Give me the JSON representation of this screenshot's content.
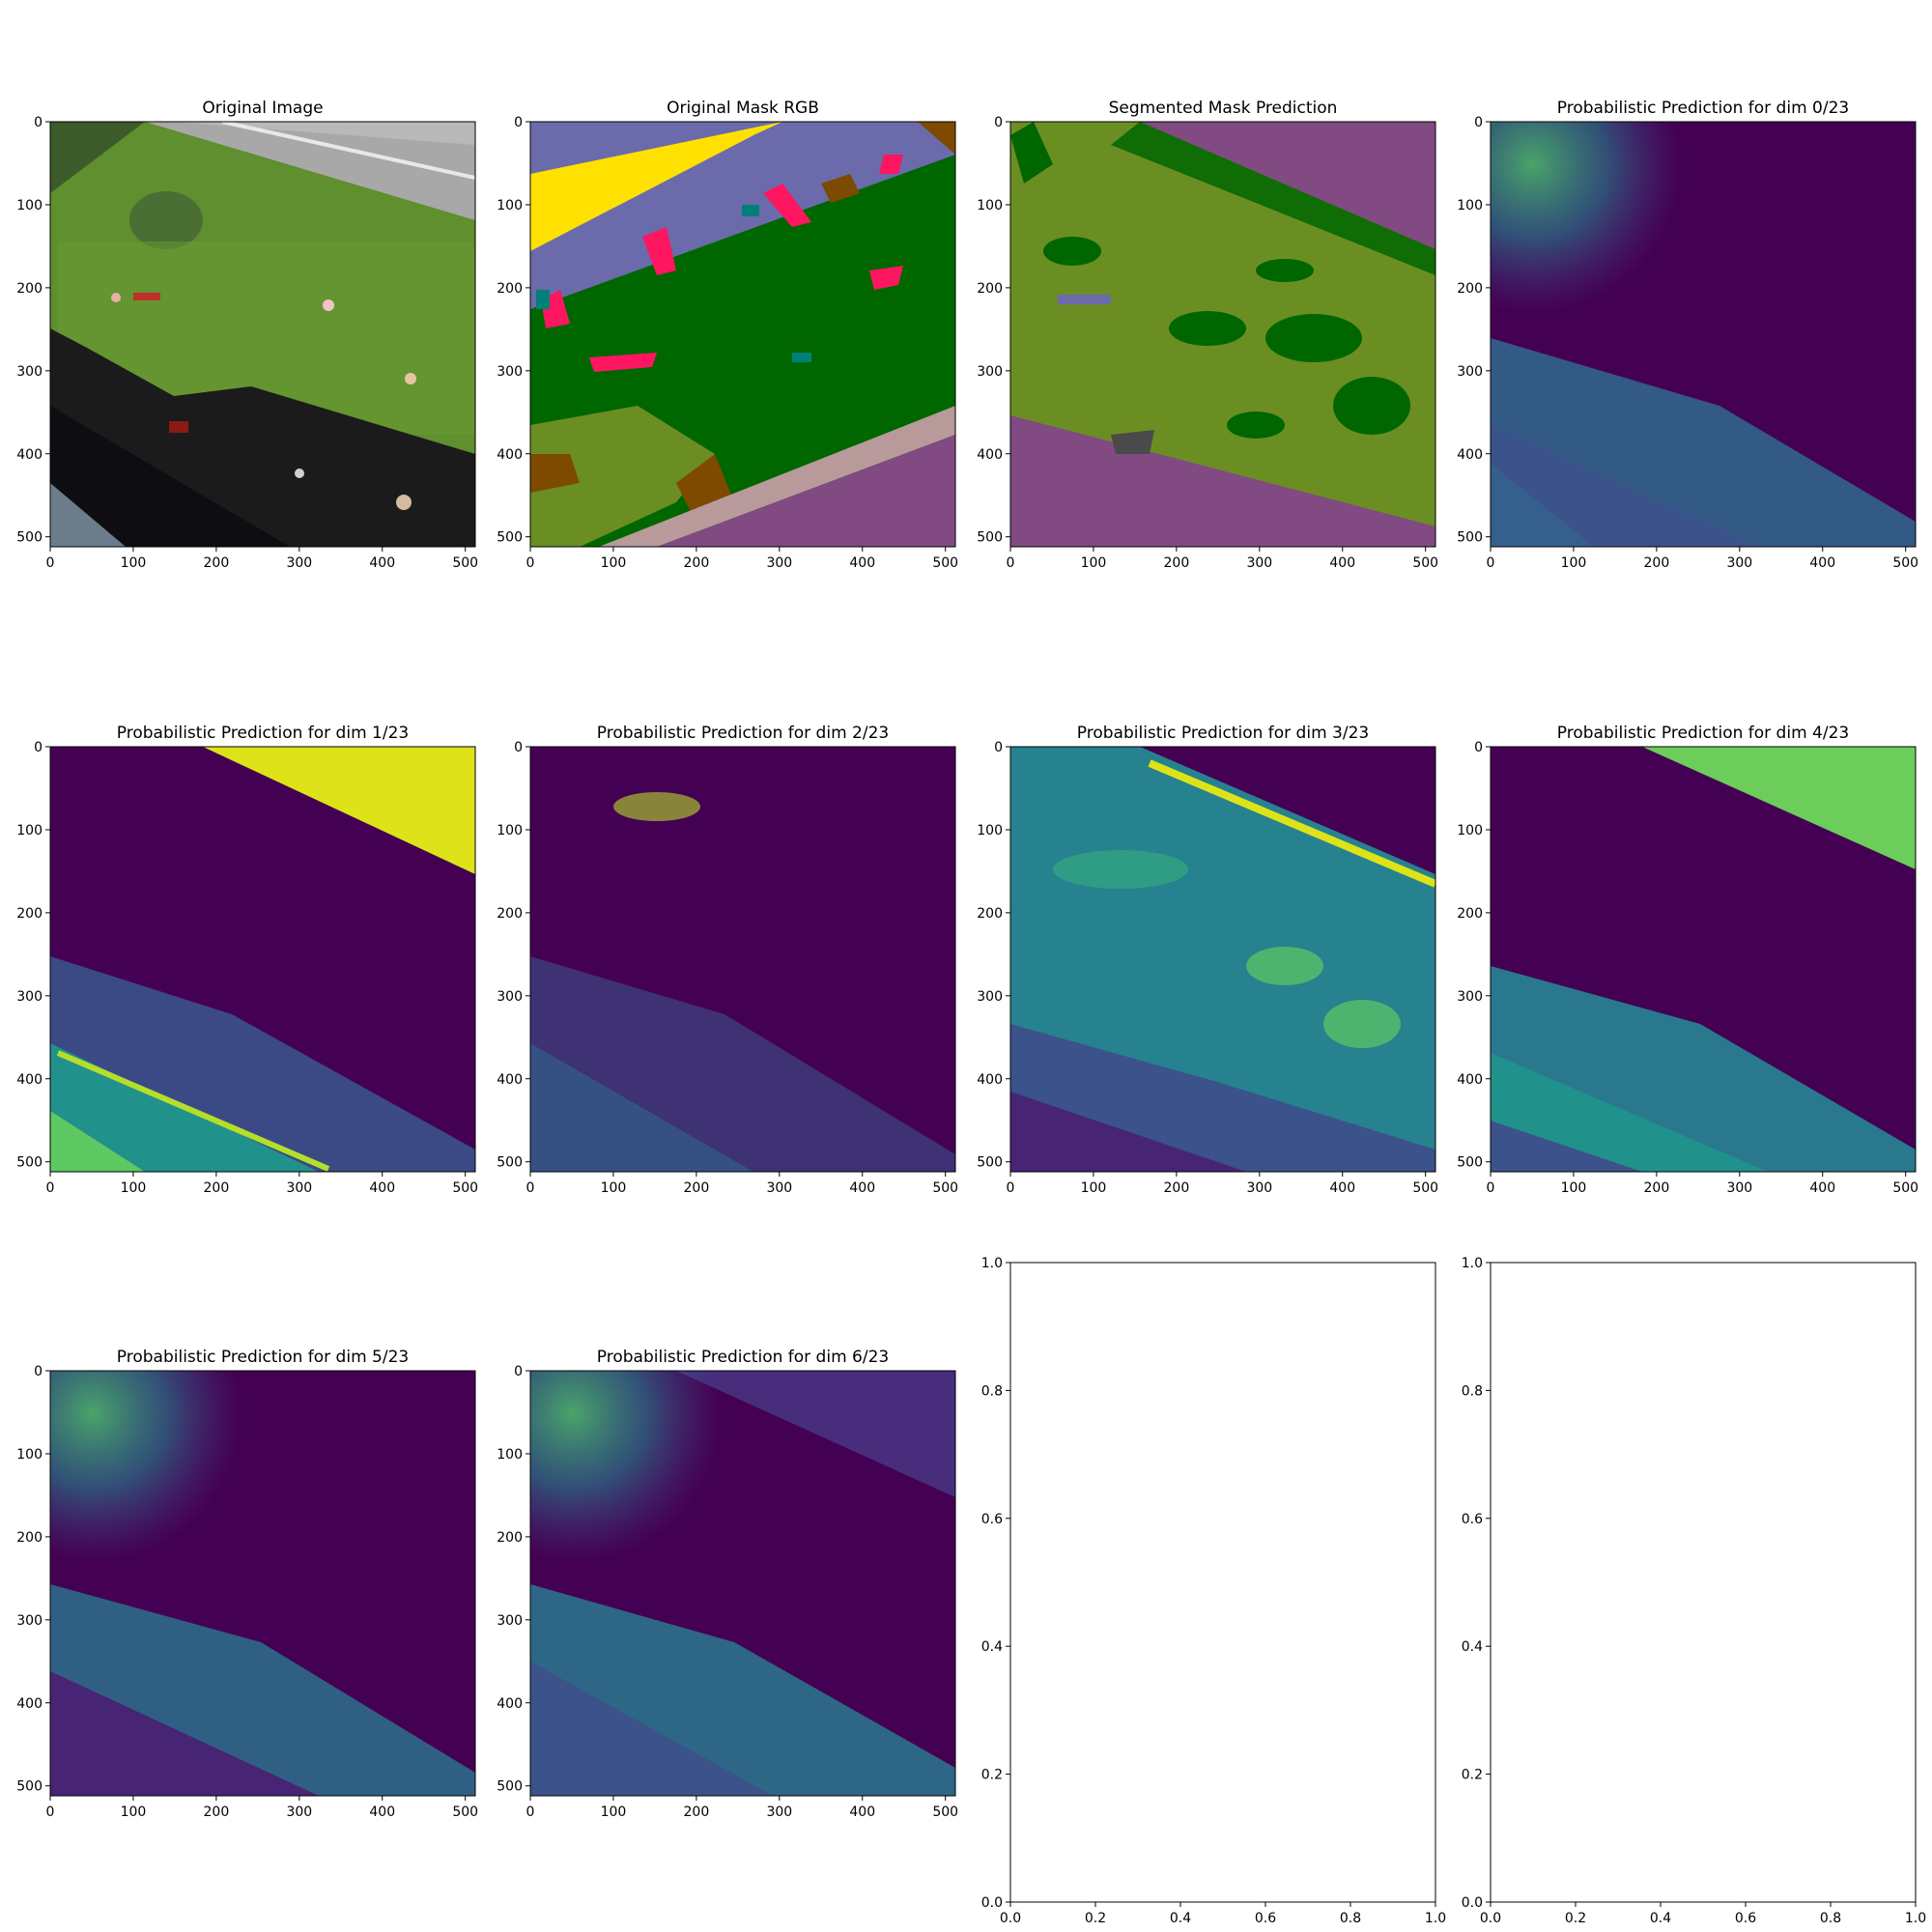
{
  "chart_data": [
    {
      "type": "image",
      "title": "Original Image",
      "xlim": [
        0,
        512
      ],
      "ylim": [
        512,
        0
      ],
      "xticks": [
        "0",
        "100",
        "200",
        "300",
        "400",
        "500"
      ],
      "yticks": [
        "0",
        "100",
        "200",
        "300",
        "400",
        "500"
      ],
      "content": "aerial photo: road, lawn, people, shadows, building roof"
    },
    {
      "type": "image",
      "title": "Original Mask RGB",
      "xlim": [
        0,
        512
      ],
      "ylim": [
        512,
        0
      ],
      "xticks": [
        "0",
        "100",
        "200",
        "300",
        "400",
        "500"
      ],
      "yticks": [
        "0",
        "100",
        "200",
        "300",
        "400",
        "500"
      ],
      "colors": {
        "lawn": "#006600",
        "road": "#fee100",
        "person": "#ff1660",
        "roof": "#814a82",
        "tree": "#6b8e23",
        "dirt": "#7e4a00",
        "wall": "#b89a9a",
        "obstacle": "#008079",
        "sky": "#6b6bab"
      }
    },
    {
      "type": "image",
      "title": "Segmented Mask Prediction",
      "xlim": [
        0,
        512
      ],
      "ylim": [
        512,
        0
      ],
      "xticks": [
        "0",
        "100",
        "200",
        "300",
        "400",
        "500"
      ],
      "yticks": [
        "0",
        "100",
        "200",
        "300",
        "400",
        "500"
      ]
    },
    {
      "type": "heatmap",
      "title": "Probabilistic Prediction for dim 0/23",
      "xlim": [
        0,
        512
      ],
      "ylim": [
        512,
        0
      ],
      "xticks": [
        "0",
        "100",
        "200",
        "300",
        "400",
        "500"
      ],
      "yticks": [
        "0",
        "100",
        "200",
        "300",
        "400",
        "500"
      ],
      "colormap": "viridis"
    },
    {
      "type": "heatmap",
      "title": "Probabilistic Prediction for dim 1/23",
      "xlim": [
        0,
        512
      ],
      "ylim": [
        512,
        0
      ],
      "xticks": [
        "0",
        "100",
        "200",
        "300",
        "400",
        "500"
      ],
      "yticks": [
        "0",
        "100",
        "200",
        "300",
        "400",
        "500"
      ],
      "colormap": "viridis"
    },
    {
      "type": "heatmap",
      "title": "Probabilistic Prediction for dim 2/23",
      "xlim": [
        0,
        512
      ],
      "ylim": [
        512,
        0
      ],
      "xticks": [
        "0",
        "100",
        "200",
        "300",
        "400",
        "500"
      ],
      "yticks": [
        "0",
        "100",
        "200",
        "300",
        "400",
        "500"
      ],
      "colormap": "viridis"
    },
    {
      "type": "heatmap",
      "title": "Probabilistic Prediction for dim 3/23",
      "xlim": [
        0,
        512
      ],
      "ylim": [
        512,
        0
      ],
      "xticks": [
        "0",
        "100",
        "200",
        "300",
        "400",
        "500"
      ],
      "yticks": [
        "0",
        "100",
        "200",
        "300",
        "400",
        "500"
      ],
      "colormap": "viridis"
    },
    {
      "type": "heatmap",
      "title": "Probabilistic Prediction for dim 4/23",
      "xlim": [
        0,
        512
      ],
      "ylim": [
        512,
        0
      ],
      "xticks": [
        "0",
        "100",
        "200",
        "300",
        "400",
        "500"
      ],
      "yticks": [
        "0",
        "100",
        "200",
        "300",
        "400",
        "500"
      ],
      "colormap": "viridis"
    },
    {
      "type": "heatmap",
      "title": "Probabilistic Prediction for dim 5/23",
      "xlim": [
        0,
        512
      ],
      "ylim": [
        512,
        0
      ],
      "xticks": [
        "0",
        "100",
        "200",
        "300",
        "400",
        "500"
      ],
      "yticks": [
        "0",
        "100",
        "200",
        "300",
        "400",
        "500"
      ],
      "colormap": "viridis"
    },
    {
      "type": "heatmap",
      "title": "Probabilistic Prediction for dim 6/23",
      "xlim": [
        0,
        512
      ],
      "ylim": [
        512,
        0
      ],
      "xticks": [
        "0",
        "100",
        "200",
        "300",
        "400",
        "500"
      ],
      "yticks": [
        "0",
        "100",
        "200",
        "300",
        "400",
        "500"
      ],
      "colormap": "viridis"
    },
    {
      "type": "empty",
      "title": "",
      "xlim": [
        0.0,
        1.0
      ],
      "ylim": [
        0.0,
        1.0
      ],
      "xticks": [
        "0.0",
        "0.2",
        "0.4",
        "0.6",
        "0.8",
        "1.0"
      ],
      "yticks": [
        "0.0",
        "0.2",
        "0.4",
        "0.6",
        "0.8",
        "1.0"
      ]
    },
    {
      "type": "empty",
      "title": "",
      "xlim": [
        0.0,
        1.0
      ],
      "ylim": [
        0.0,
        1.0
      ],
      "xticks": [
        "0.0",
        "0.2",
        "0.4",
        "0.6",
        "0.8",
        "1.0"
      ],
      "yticks": [
        "0.0",
        "0.2",
        "0.4",
        "0.6",
        "0.8",
        "1.0"
      ]
    }
  ]
}
